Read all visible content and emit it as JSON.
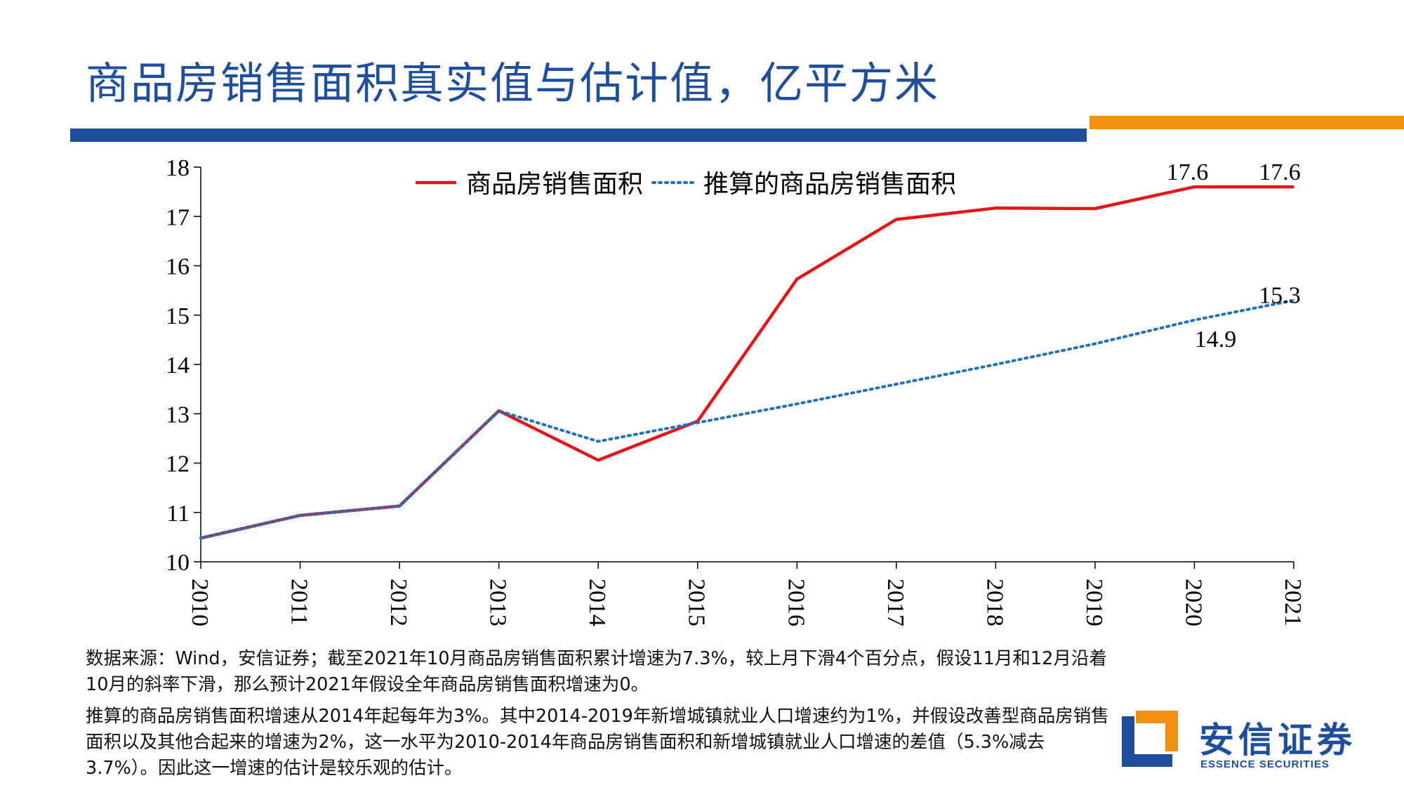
{
  "header": {
    "title": "商品房销售面积真实值与估计值，亿平方米"
  },
  "colors": {
    "brand_blue": "#1f4e9c",
    "accent_orange": "#f3900f",
    "actual_series": "#e3171b",
    "estimate_series": "#1f72b8"
  },
  "chart_data": {
    "type": "line",
    "x": [
      "2010",
      "2011",
      "2012",
      "2013",
      "2014",
      "2015",
      "2016",
      "2017",
      "2018",
      "2019",
      "2020",
      "2021"
    ],
    "ylim": [
      10,
      18
    ],
    "yticks": [
      10,
      11,
      12,
      13,
      14,
      15,
      16,
      17,
      18
    ],
    "grid": false,
    "legend_position": "top-center",
    "series": [
      {
        "name": "商品房销售面积",
        "style": "solid",
        "color": "#e3171b",
        "values": [
          10.48,
          10.94,
          11.13,
          13.06,
          12.06,
          12.85,
          15.73,
          16.94,
          17.17,
          17.16,
          17.6,
          17.6
        ]
      },
      {
        "name": "推算的商品房销售面积",
        "style": "dotted",
        "color": "#1f72b8",
        "values": [
          10.48,
          10.94,
          11.13,
          13.06,
          12.44,
          12.82,
          13.2,
          13.6,
          14.0,
          14.42,
          14.9,
          15.3
        ]
      }
    ],
    "annotations": [
      {
        "text": "17.6",
        "series": 0,
        "index": 10
      },
      {
        "text": "17.6",
        "series": 0,
        "index": 11
      },
      {
        "text": "14.9",
        "series": 1,
        "index": 10
      },
      {
        "text": "15.3",
        "series": 1,
        "index": 11
      }
    ]
  },
  "notes": {
    "source": "数据来源：Wind，安信证券；截至2021年10月商品房销售面积累计增速为7.3%，较上月下滑4个百分点，假设11月和12月沿着10月的斜率下滑，那么预计2021年假设全年商品房销售面积增速为0。",
    "method": "推算的商品房销售面积增速从2014年起每年为3%。其中2014-2019年新增城镇就业人口增速约为1%，并假设改善型商品房销售面积以及其他合起来的增速为2%，这一水平为2010-2014年商品房销售面积和新增城镇就业人口增速的差值（5.3%减去3.7%）。因此这一增速的估计是较乐观的估计。"
  },
  "logo": {
    "cn": "安信证券",
    "en": "ESSENCE SECURITIES",
    "icon": "essence-logo-icon"
  }
}
